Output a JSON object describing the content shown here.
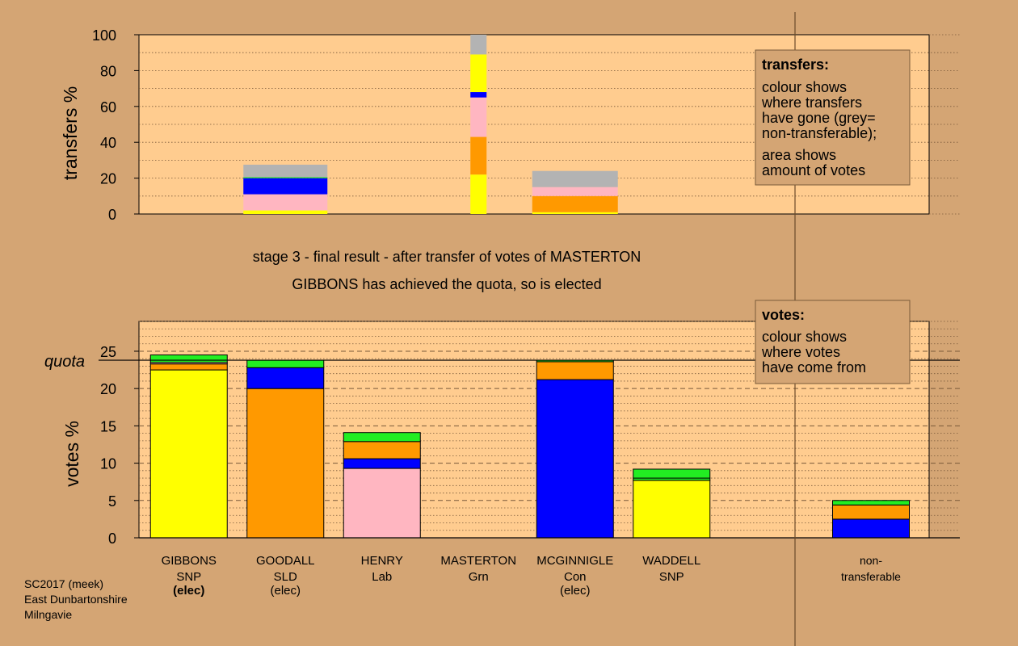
{
  "colors": {
    "page_bg": "#d4a574",
    "plot_bg": "#ffcc8f",
    "snp": "#ffff00",
    "sld": "#ff9900",
    "lab": "#ffb6c1",
    "con": "#0000ff",
    "grn": "#22ee22",
    "nontransferable": "#b3b3b3"
  },
  "chart_data": [
    {
      "type": "bar",
      "stacked": true,
      "panel": "transfers",
      "ylabel": "transfers %",
      "ylim": [
        0,
        100
      ],
      "yticks": [
        0,
        20,
        40,
        60,
        80,
        100
      ],
      "categories": [
        "GIBBONS",
        "GOODALL",
        "HENRY",
        "MASTERTON",
        "MCGINNIGLE",
        "WADDELL"
      ],
      "bars": [
        {
          "category": "GOODALL",
          "segments": [
            {
              "party": "snp",
              "value": 2
            },
            {
              "party": "lab",
              "value": 9
            },
            {
              "party": "con",
              "value": 9
            },
            {
              "party": "grn",
              "value": 0.5
            },
            {
              "party": "nontransferable",
              "value": 7
            }
          ]
        },
        {
          "category": "MASTERTON",
          "segments": [
            {
              "party": "snp",
              "value": 22
            },
            {
              "party": "sld",
              "value": 21
            },
            {
              "party": "lab",
              "value": 22
            },
            {
              "party": "con",
              "value": 3
            },
            {
              "party": "snp",
              "value": 21
            },
            {
              "party": "nontransferable",
              "value": 11
            }
          ]
        },
        {
          "category": "MCGINNIGLE",
          "segments": [
            {
              "party": "snp",
              "value": 1
            },
            {
              "party": "sld",
              "value": 9
            },
            {
              "party": "lab",
              "value": 5
            },
            {
              "party": "nontransferable",
              "value": 9
            }
          ]
        }
      ],
      "legend": {
        "title": "transfers:",
        "lines": [
          "colour shows",
          "where transfers",
          "have gone (grey=",
          "non-transferable);"
        ],
        "lines2": [
          "area shows",
          "amount of votes"
        ]
      }
    },
    {
      "type": "bar",
      "stacked": true,
      "panel": "votes",
      "ylabel": "votes %",
      "ylim": [
        0,
        29
      ],
      "yticks": [
        0,
        5,
        10,
        15,
        20,
        25
      ],
      "quota": 23.8,
      "quota_label": "quota",
      "categories": [
        {
          "name": "GIBBONS",
          "party": "SNP",
          "status": "(elec)",
          "status_bold": true
        },
        {
          "name": "GOODALL",
          "party": "SLD",
          "status": "(elec)",
          "status_bold": false
        },
        {
          "name": "HENRY",
          "party": "Lab",
          "status": "",
          "status_bold": false
        },
        {
          "name": "MASTERTON",
          "party": "Grn",
          "status": "",
          "status_bold": false
        },
        {
          "name": "MCGINNIGLE",
          "party": "Con",
          "status": "(elec)",
          "status_bold": false
        },
        {
          "name": "WADDELL",
          "party": "SNP",
          "status": "",
          "status_bold": false
        }
      ],
      "bars": [
        {
          "category": "GIBBONS",
          "segments": [
            {
              "party": "snp",
              "value": 22.5
            },
            {
              "party": "sld",
              "value": 0.8
            },
            {
              "party": "lab",
              "value": 0.2
            },
            {
              "party": "grn",
              "value": 1.0
            }
          ]
        },
        {
          "category": "GOODALL",
          "segments": [
            {
              "party": "sld",
              "value": 20
            },
            {
              "party": "con",
              "value": 2.8
            },
            {
              "party": "grn",
              "value": 1.0
            }
          ]
        },
        {
          "category": "HENRY",
          "segments": [
            {
              "party": "lab",
              "value": 9.3
            },
            {
              "party": "con",
              "value": 1.3
            },
            {
              "party": "sld",
              "value": 2.3
            },
            {
              "party": "grn",
              "value": 1.2
            }
          ]
        },
        {
          "category": "MASTERTON",
          "segments": []
        },
        {
          "category": "MCGINNIGLE",
          "segments": [
            {
              "party": "con",
              "value": 21.2
            },
            {
              "party": "sld",
              "value": 2.4
            },
            {
              "party": "grn",
              "value": 0.2
            }
          ]
        },
        {
          "category": "WADDELL",
          "segments": [
            {
              "party": "snp",
              "value": 7.7
            },
            {
              "party": "grn",
              "value": 0.3
            },
            {
              "party": "grn",
              "value": 1.2
            }
          ]
        }
      ],
      "nontransferable": {
        "label_line1": "non-",
        "label_line2": "transferable",
        "segments": [
          {
            "party": "con",
            "value": 2.5
          },
          {
            "party": "sld",
            "value": 1.9
          },
          {
            "party": "grn",
            "value": 0.6
          }
        ]
      },
      "legend": {
        "title": "votes:",
        "lines": [
          "colour shows",
          "where votes",
          "have come from"
        ]
      }
    }
  ],
  "captions": {
    "line1": "stage 3 - final result - after transfer of votes of MASTERTON",
    "line2": "GIBBONS has achieved the quota, so is elected"
  },
  "footer": {
    "line1": "SC2017 (meek)",
    "line2": "East Dunbartonshire",
    "line3": "Milngavie"
  }
}
